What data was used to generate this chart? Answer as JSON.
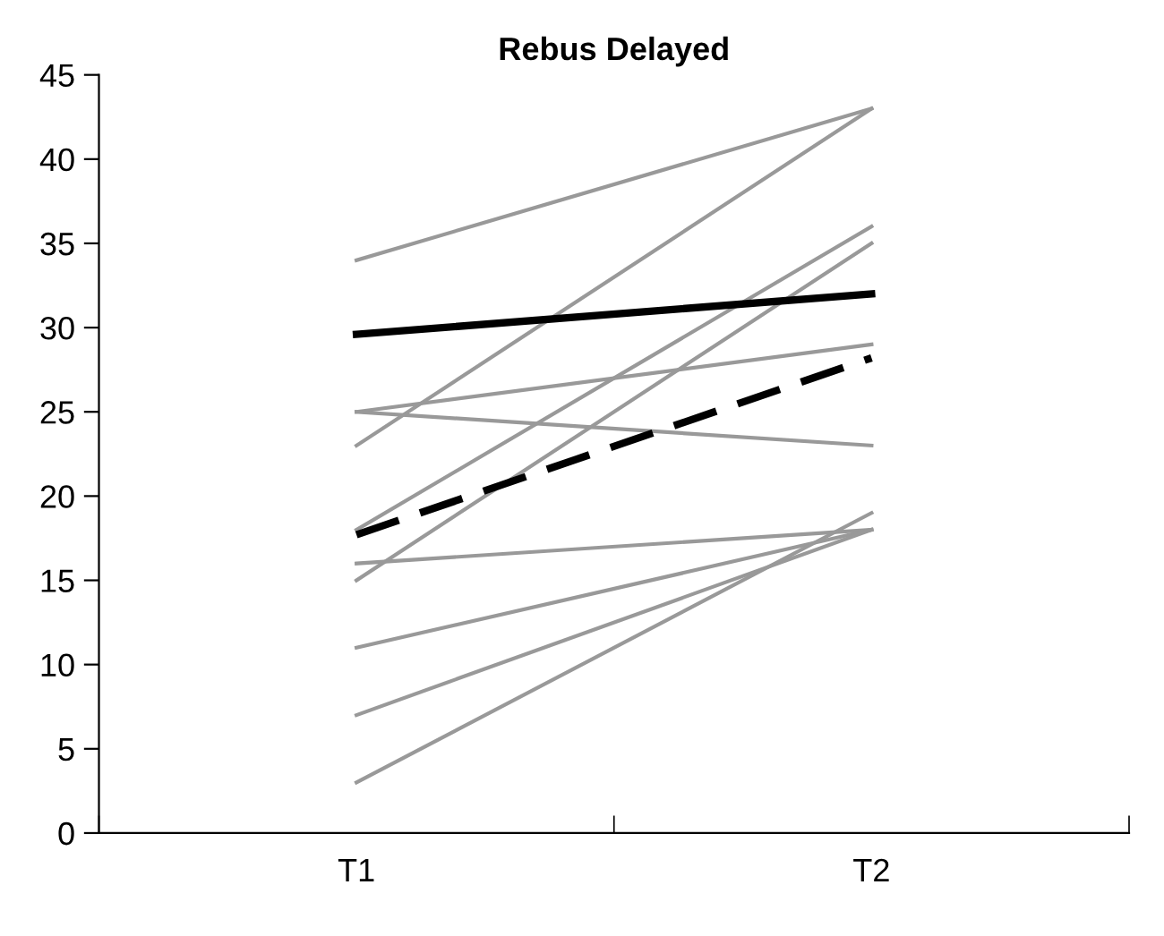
{
  "chart_data": {
    "type": "line",
    "title": "Rebus Delayed",
    "categories": [
      "T1",
      "T2"
    ],
    "ylim": [
      0,
      45
    ],
    "yticks": [
      0,
      5,
      10,
      15,
      20,
      25,
      30,
      35,
      40,
      45
    ],
    "grid": false,
    "legend": false,
    "marker": "none",
    "series": [
      {
        "color": "#999999",
        "values": [
          34,
          43
        ]
      },
      {
        "color": "#999999",
        "values": [
          23,
          43
        ]
      },
      {
        "color": "#999999",
        "values": [
          25,
          29
        ]
      },
      {
        "color": "#999999",
        "values": [
          25,
          23
        ]
      },
      {
        "color": "#999999",
        "values": [
          18,
          36
        ]
      },
      {
        "color": "#999999",
        "values": [
          15,
          35
        ]
      },
      {
        "color": "#999999",
        "values": [
          16,
          18
        ]
      },
      {
        "color": "#999999",
        "values": [
          11,
          18
        ]
      },
      {
        "color": "#999999",
        "values": [
          7,
          18
        ]
      },
      {
        "color": "#999999",
        "values": [
          3,
          19
        ]
      },
      {
        "color": "#000000",
        "values": [
          29.6,
          32
        ]
      },
      {
        "color": "#000000",
        "values": [
          17.7,
          28.2
        ],
        "line_style": "dashed"
      }
    ]
  }
}
